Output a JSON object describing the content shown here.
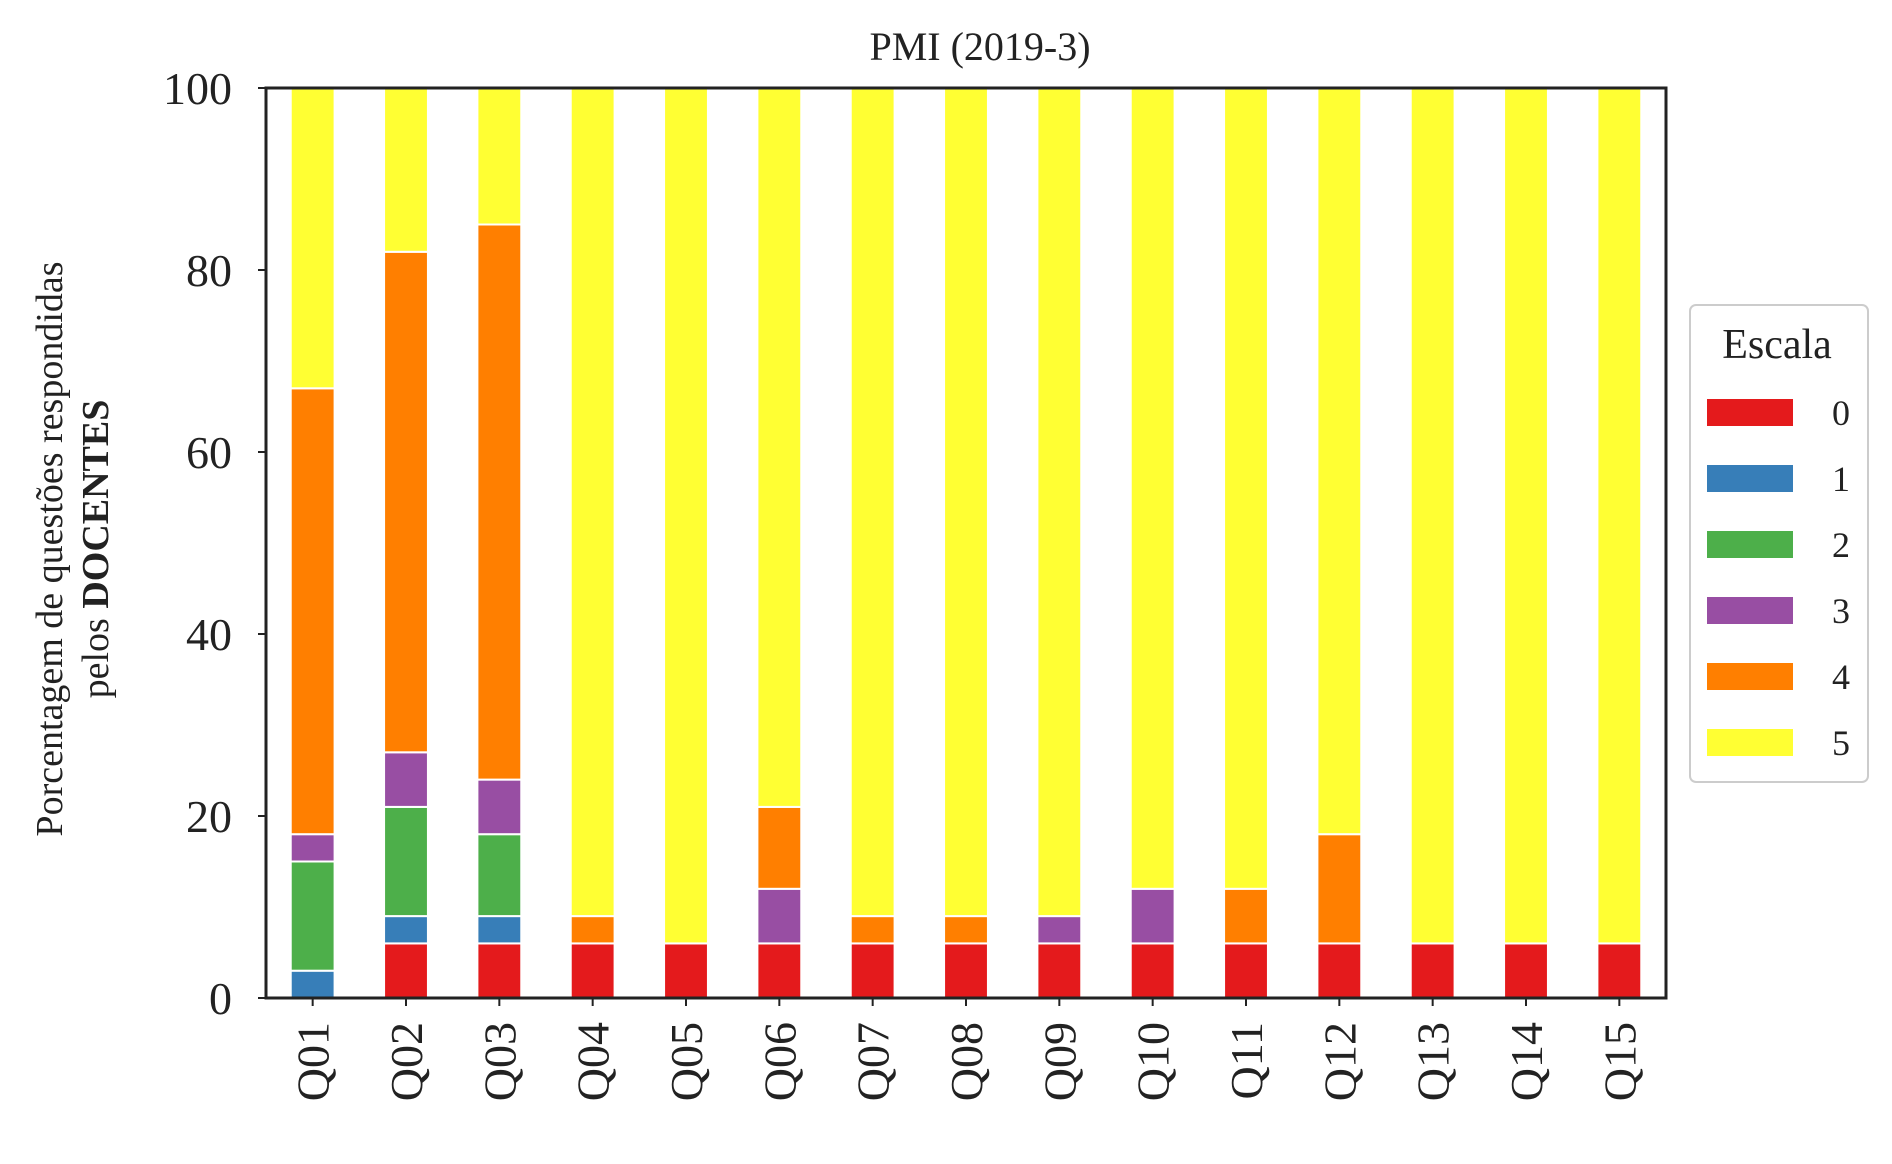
{
  "chart_data": {
    "type": "bar",
    "stacked": true,
    "title": "PMI (2019-3)",
    "ylabel_line1": "Porcentagem de questões respondidas",
    "ylabel_line2_prefix": "pelos ",
    "ylabel_line2_bold": "DOCENTES",
    "xlabel": "",
    "ylim": [
      0,
      100
    ],
    "yticks": [
      "0",
      "20",
      "40",
      "60",
      "80",
      "100"
    ],
    "grid": false,
    "legend_title": "Escala",
    "legend_position": "right",
    "categories": [
      "Q01",
      "Q02",
      "Q03",
      "Q04",
      "Q05",
      "Q06",
      "Q07",
      "Q08",
      "Q09",
      "Q10",
      "Q11",
      "Q12",
      "Q13",
      "Q14",
      "Q15"
    ],
    "series": [
      {
        "name": "0",
        "color": "#e41a1c",
        "values": [
          0,
          6,
          6,
          6,
          6,
          6,
          6,
          6,
          6,
          6,
          6,
          6,
          6,
          6,
          6
        ]
      },
      {
        "name": "1",
        "color": "#377eb8",
        "values": [
          3,
          3,
          3,
          0,
          0,
          0,
          0,
          0,
          0,
          0,
          0,
          0,
          0,
          0,
          0
        ]
      },
      {
        "name": "2",
        "color": "#4daf4a",
        "values": [
          12,
          12,
          9,
          0,
          0,
          0,
          0,
          0,
          0,
          0,
          0,
          0,
          0,
          0,
          0
        ]
      },
      {
        "name": "3",
        "color": "#984ea3",
        "values": [
          3,
          6,
          6,
          0,
          0,
          6,
          0,
          0,
          3,
          6,
          0,
          0,
          0,
          0,
          0
        ]
      },
      {
        "name": "4",
        "color": "#ff7f00",
        "values": [
          49,
          55,
          61,
          3,
          0,
          9,
          3,
          3,
          0,
          0,
          6,
          12,
          0,
          0,
          0
        ]
      },
      {
        "name": "5",
        "color": "#ffff33",
        "values": [
          33,
          18,
          15,
          91,
          94,
          79,
          91,
          91,
          91,
          88,
          88,
          82,
          94,
          94,
          94
        ]
      }
    ]
  }
}
